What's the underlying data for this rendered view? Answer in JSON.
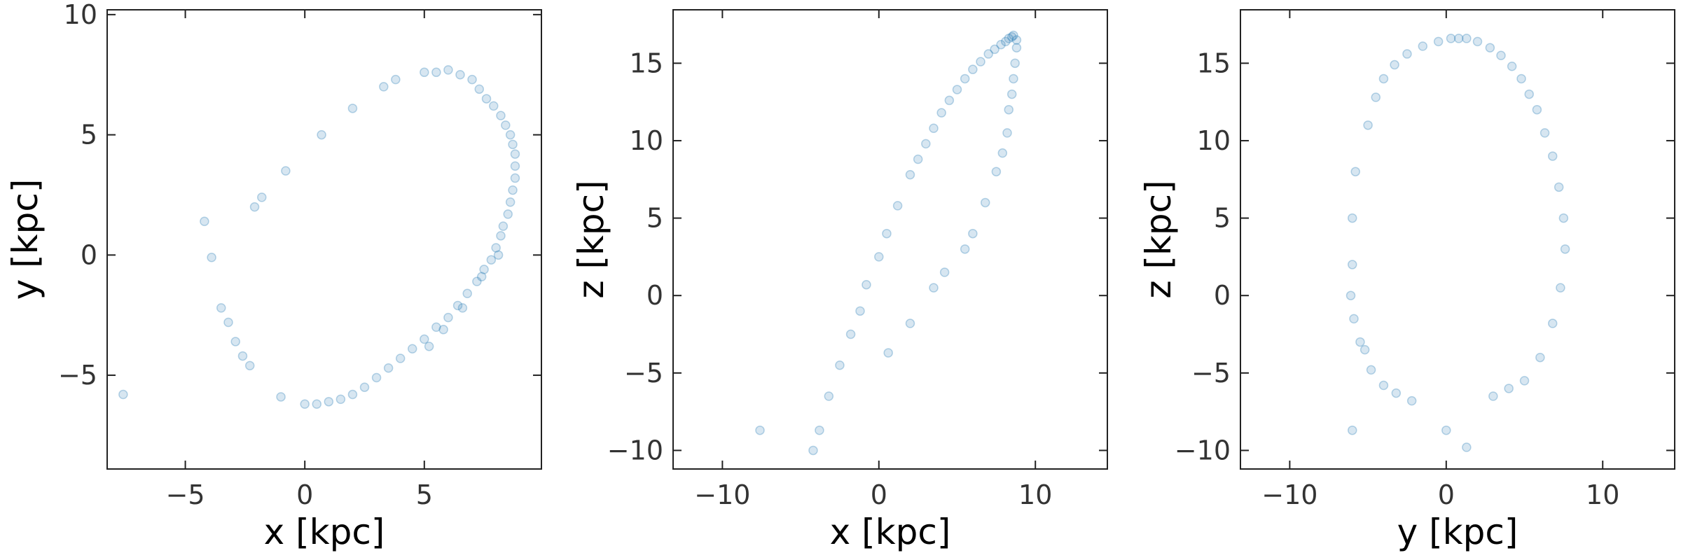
{
  "chart_data": [
    {
      "type": "scatter",
      "xlabel": "x [kpc]",
      "ylabel": "y [kpc]",
      "color": "#1f77b4",
      "xlim": [
        -8.27,
        9.9
      ],
      "ylim": [
        -8.9,
        10.2
      ],
      "xticks": [
        {
          "value": -5,
          "label": "−5"
        },
        0,
        5
      ],
      "yticks": [
        {
          "value": -5,
          "label": "−5"
        },
        0,
        5,
        10
      ],
      "x": [
        -7.6,
        -4.2,
        -3.9,
        -3.5,
        -3.2,
        -2.9,
        -2.6,
        -2.3,
        -2.1,
        -1.8,
        -1.0,
        -0.8,
        0.7,
        2.0,
        3.3,
        3.8,
        5.0,
        5.5,
        6.0,
        6.5,
        7.0,
        0.0,
        0.5,
        1.0,
        1.5,
        2.0,
        2.5,
        3.0,
        3.5,
        4.0,
        4.5,
        5.0,
        5.5,
        6.0,
        6.4,
        6.8,
        7.2,
        7.5,
        7.8,
        8.0,
        8.2,
        8.3,
        8.5,
        8.6,
        8.7,
        8.8,
        8.8,
        8.8,
        8.7,
        8.6,
        8.4,
        8.2,
        7.9,
        7.6,
        7.3,
        5.2,
        5.8,
        6.6,
        7.4,
        8.1
      ],
      "values": [
        -5.8,
        1.4,
        -0.1,
        -2.2,
        -2.8,
        -3.6,
        -4.2,
        -4.6,
        2.0,
        2.4,
        -5.9,
        3.5,
        5.0,
        6.1,
        7.0,
        7.3,
        7.6,
        7.6,
        7.7,
        7.5,
        7.3,
        -6.2,
        -6.2,
        -6.1,
        -6.0,
        -5.8,
        -5.5,
        -5.1,
        -4.7,
        -4.3,
        -3.9,
        -3.5,
        -3.0,
        -2.6,
        -2.1,
        -1.6,
        -1.1,
        -0.6,
        -0.2,
        0.3,
        0.8,
        1.2,
        1.7,
        2.2,
        2.7,
        3.2,
        3.7,
        4.2,
        4.6,
        5.0,
        5.4,
        5.8,
        6.2,
        6.5,
        6.9,
        -3.8,
        -3.1,
        -2.2,
        -0.9,
        0.0
      ]
    },
    {
      "type": "scatter",
      "xlabel": "x [kpc]",
      "ylabel": "z [kpc]",
      "color": "#1f77b4",
      "xlim": [
        -13.15,
        14.6
      ],
      "ylim": [
        -11.2,
        18.45
      ],
      "xticks": [
        {
          "value": -10,
          "label": "−10"
        },
        0,
        10
      ],
      "yticks": [
        {
          "value": -10,
          "label": "−10"
        },
        {
          "value": -5,
          "label": "−5"
        },
        0,
        5,
        10,
        15
      ],
      "x": [
        -7.6,
        -4.2,
        -3.8,
        -3.2,
        -2.5,
        -1.8,
        -1.2,
        -0.8,
        0.0,
        0.5,
        1.2,
        2.0,
        2.5,
        3.0,
        3.5,
        4.0,
        4.5,
        5.0,
        5.5,
        6.0,
        6.5,
        7.0,
        7.4,
        7.8,
        8.1,
        8.3,
        8.5,
        8.6,
        8.8,
        8.8,
        8.7,
        8.6,
        8.5,
        8.3,
        8.2,
        7.9,
        7.5,
        6.8,
        6.0,
        5.5,
        4.2,
        3.5,
        2.0,
        0.6
      ],
      "values": [
        -8.7,
        -10.0,
        -8.7,
        -6.5,
        -4.5,
        -2.5,
        -1.0,
        0.7,
        2.5,
        4.0,
        5.8,
        7.8,
        8.8,
        9.8,
        10.8,
        11.8,
        12.6,
        13.3,
        14.0,
        14.6,
        15.1,
        15.6,
        15.9,
        16.2,
        16.4,
        16.6,
        16.7,
        16.8,
        16.5,
        16.0,
        15.0,
        14.0,
        13.0,
        12.0,
        10.5,
        9.2,
        8.0,
        6.0,
        4.0,
        3.0,
        1.5,
        0.5,
        -1.8,
        -3.7
      ]
    },
    {
      "type": "scatter",
      "xlabel": "y [kpc]",
      "ylabel": "z [kpc]",
      "color": "#1f77b4",
      "xlim": [
        -13.15,
        14.6
      ],
      "ylim": [
        -11.2,
        18.45
      ],
      "xticks": [
        {
          "value": -10,
          "label": "−10"
        },
        0,
        10
      ],
      "yticks": [
        {
          "value": -10,
          "label": "−10"
        },
        {
          "value": -5,
          "label": "−5"
        },
        0,
        5,
        10,
        15
      ],
      "x": [
        -6.0,
        -5.8,
        -6.0,
        -6.1,
        -5.9,
        -5.5,
        -5.0,
        -4.5,
        -4.0,
        -3.3,
        -2.5,
        -1.5,
        -0.5,
        0.3,
        0.8,
        1.3,
        2.0,
        2.8,
        3.5,
        4.2,
        4.8,
        5.3,
        5.8,
        6.3,
        6.8,
        7.2,
        7.5,
        7.6,
        7.3,
        6.8,
        6.0,
        5.0,
        4.0,
        3.0,
        1.3,
        0.0,
        -6.0,
        -4.8,
        -4.0,
        -3.2,
        -2.2,
        -5.2
      ],
      "values": [
        5.0,
        8.0,
        2.0,
        0.0,
        -1.5,
        -3.0,
        11.0,
        12.8,
        14.0,
        14.9,
        15.6,
        16.1,
        16.4,
        16.6,
        16.6,
        16.6,
        16.4,
        16.0,
        15.5,
        14.8,
        14.0,
        13.0,
        12.0,
        10.5,
        9.0,
        7.0,
        5.0,
        3.0,
        0.5,
        -1.8,
        -4.0,
        -5.5,
        -6.0,
        -6.5,
        -9.8,
        -8.7,
        -8.7,
        -4.8,
        -5.8,
        -6.3,
        -6.8,
        -3.5
      ]
    }
  ]
}
